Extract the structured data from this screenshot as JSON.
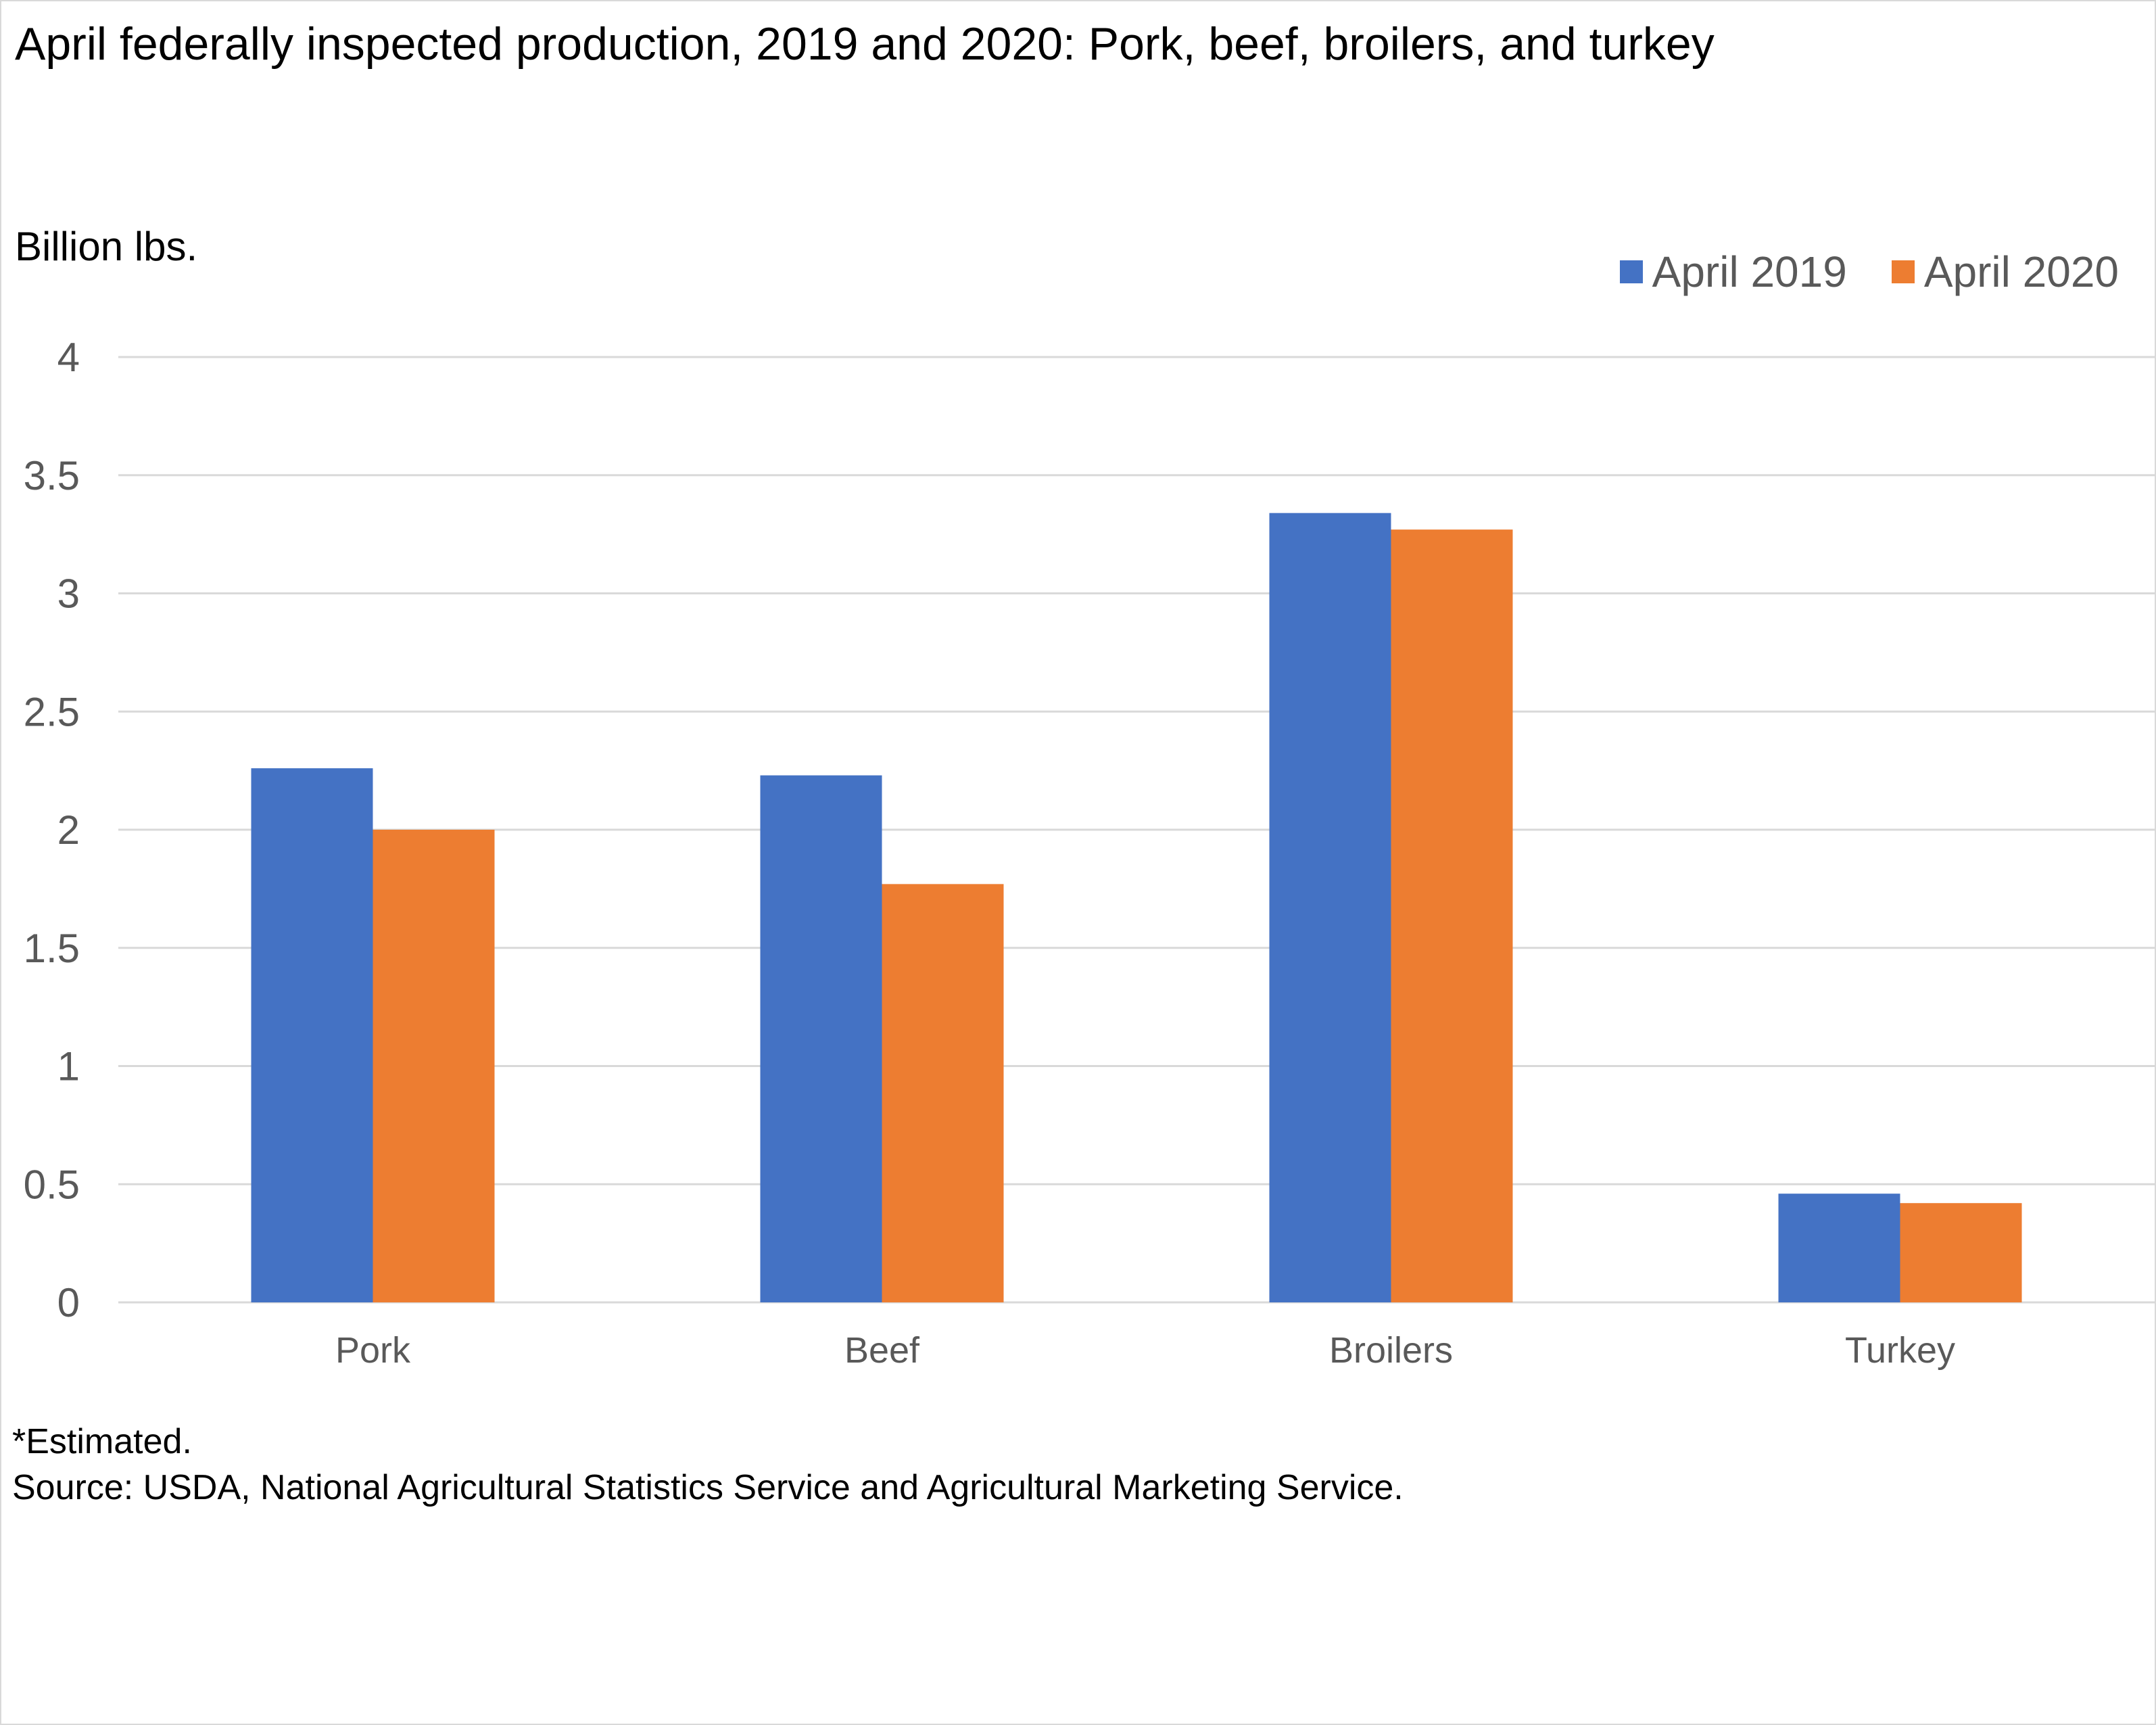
{
  "chart_data": {
    "type": "bar",
    "title": "April federally inspected production, 2019 and 2020: Pork, beef, broilers, and turkey",
    "ylabel": "Billion lbs.",
    "xlabel": "",
    "categories": [
      "Pork",
      "Beef",
      "Broilers",
      "Turkey"
    ],
    "series": [
      {
        "name": "April 2019",
        "color": "#4472C4",
        "values": [
          2.26,
          2.23,
          3.34,
          0.46
        ]
      },
      {
        "name": "April 2020",
        "color": "#ED7D31",
        "values": [
          2.0,
          1.77,
          3.27,
          0.42
        ]
      }
    ],
    "ylim": [
      0,
      4
    ],
    "yticks": [
      "0",
      "0.5",
      "1",
      "1.5",
      "2",
      "2.5",
      "3",
      "3.5",
      "4"
    ],
    "grid": true,
    "legend": "top-right"
  },
  "footnote": {
    "line1": "*Estimated.",
    "line2": "Source: USDA, National Agricultural Statistics Service and Agricultural Marketing Service."
  }
}
